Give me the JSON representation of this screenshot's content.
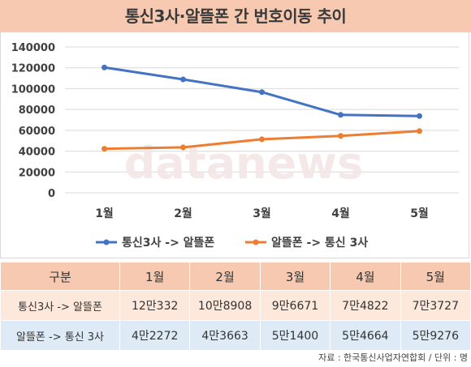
{
  "title": "통신3사·알뜰폰 간 번호이동 추이",
  "watermark": "datanews",
  "colors": {
    "series1": "#4472c4",
    "series2": "#ed7d31",
    "header_bg": "#f6c9b0",
    "row1_bg": "#fde8dc",
    "row2_bg": "#deebf6"
  },
  "chart_data": {
    "type": "line",
    "categories": [
      "1월",
      "2월",
      "3월",
      "4월",
      "5월"
    ],
    "series": [
      {
        "name": "통신3사 -> 알뜰폰",
        "values": [
          120332,
          108908,
          96671,
          74822,
          73727
        ]
      },
      {
        "name": "알뜰폰 -> 통신 3사",
        "values": [
          42272,
          43663,
          51400,
          54664,
          59276
        ]
      }
    ],
    "yticks": [
      "0",
      "20000",
      "40000",
      "60000",
      "80000",
      "100000",
      "120000",
      "140000"
    ],
    "ylim": [
      0,
      140000
    ],
    "grid": true,
    "legend": "bottom"
  },
  "table": {
    "header": [
      "구분",
      "1월",
      "2월",
      "3월",
      "4월",
      "5월"
    ],
    "rows": [
      [
        "통신3사 -> 알뜰폰",
        "12만332",
        "10만8908",
        "9만6671",
        "7만4822",
        "7만3727"
      ],
      [
        "알뜰폰 -> 통신 3사",
        "4만2272",
        "4만3663",
        "5만1400",
        "5만4664",
        "5만9276"
      ]
    ]
  },
  "source": "자료 : 한국통신사업자연합회 / 단위 : 명"
}
